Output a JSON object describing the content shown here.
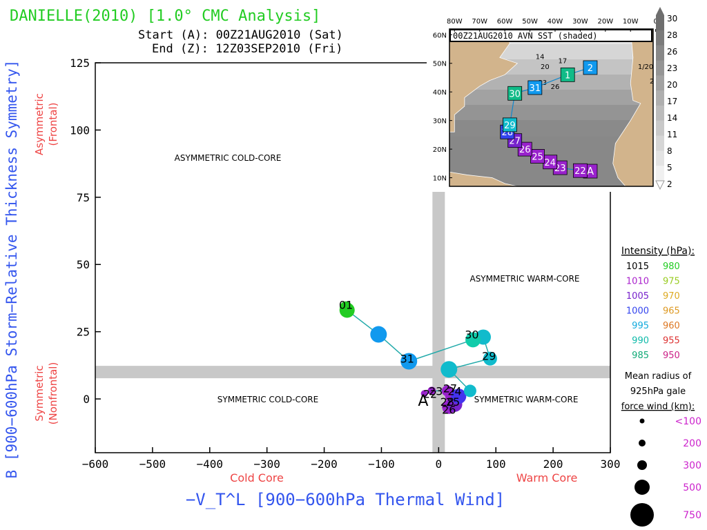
{
  "header": {
    "title": "DANIELLE(2010) [1.0° CMC Analysis]",
    "start_line": "Start (A): 00Z21AUG2010 (Sat)",
    "end_line": "End (Z): 12Z03SEP2010 (Fri)"
  },
  "colors": {
    "title": "#22cc22",
    "axis_label_blue": "#3355ee",
    "axis_sub_red": "#ee4444",
    "gray_band": "#c8c8c8",
    "track_line": "#22aaaa",
    "magenta_label": "#cc22cc"
  },
  "chart_data": {
    "type": "scatter",
    "title": "DANIELLE(2010) [1.0° CMC Analysis]",
    "xlabel": "−V_T^L [900−600hPa Thermal Wind]",
    "ylabel": "B [900−600hPa Storm−Relative Thickness Symmetry]",
    "xlim": [
      -600,
      300
    ],
    "ylim": [
      -20,
      125
    ],
    "x_ticks": [
      -600,
      -500,
      -400,
      -300,
      -200,
      -100,
      0,
      100,
      200,
      300
    ],
    "y_ticks": [
      0,
      25,
      50,
      75,
      100,
      125
    ],
    "x_sub_left": "Cold Core",
    "x_sub_right": "Warm Core",
    "y_sub_top": [
      "Asymmetric",
      "(Frontal)"
    ],
    "y_sub_bottom": [
      "Symmetric",
      "(Nonfrontal)"
    ],
    "band_x": 0,
    "band_y": 10,
    "quadrant_labels": {
      "top_left": "ASYMMETRIC COLD-CORE",
      "top_right": "ASYMMETRIC WARM-CORE",
      "bottom_left": "SYMMETRIC COLD-CORE",
      "bottom_right": "SYMMETRIC WARM-CORE"
    },
    "track": [
      {
        "x": -25,
        "y": 2,
        "color": "#9922cc",
        "r": 5
      },
      {
        "x": -12,
        "y": 3,
        "color": "#9922cc",
        "r": 6
      },
      {
        "x": 15,
        "y": 3,
        "color": "#9922cc",
        "r": 8
      },
      {
        "x": 22,
        "y": 1,
        "color": "#9922cc",
        "r": 9
      },
      {
        "x": 18,
        "y": -3,
        "color": "#9922cc",
        "r": 10
      },
      {
        "x": 28,
        "y": -2,
        "color": "#7722cc",
        "r": 11
      },
      {
        "x": 35,
        "y": 1,
        "color": "#4433ee",
        "r": 11
      },
      {
        "x": 55,
        "y": 3,
        "color": "#11bbcc",
        "r": 9
      },
      {
        "x": 18,
        "y": 11,
        "color": "#11bbcc",
        "r": 12
      },
      {
        "x": 90,
        "y": 15,
        "color": "#11bbcc",
        "r": 10
      },
      {
        "x": 78,
        "y": 23,
        "color": "#11bbcc",
        "r": 11
      },
      {
        "x": 60,
        "y": 22,
        "color": "#11ccaa",
        "r": 11
      },
      {
        "x": -52,
        "y": 14,
        "color": "#1199ee",
        "r": 12
      },
      {
        "x": -105,
        "y": 24,
        "color": "#1199ee",
        "r": 12
      },
      {
        "x": -160,
        "y": 33,
        "color": "#22cc22",
        "r": 11
      },
      {
        "x": -162,
        "y": 34,
        "color": "#22cc22",
        "r": 9
      }
    ],
    "point_labels": [
      {
        "text": "A",
        "x": -27,
        "y": -1
      },
      {
        "text": "22",
        "x": -15,
        "y": 2
      },
      {
        "text": "23",
        "x": -5,
        "y": 3
      },
      {
        "text": "24",
        "x": 28,
        "y": 3
      },
      {
        "text": "25",
        "x": 25,
        "y": -1
      },
      {
        "text": "26",
        "x": 18,
        "y": -4
      },
      {
        "text": "27",
        "x": 20,
        "y": 4
      },
      {
        "text": "28",
        "x": 15,
        "y": -1
      },
      {
        "text": "29",
        "x": 88,
        "y": 16
      },
      {
        "text": "30",
        "x": 58,
        "y": 24
      },
      {
        "text": "31",
        "x": -55,
        "y": 15
      },
      {
        "text": "01",
        "x": -162,
        "y": 35
      }
    ]
  },
  "legend": {
    "intensity_title": "Intensity (hPa):",
    "intensity": [
      {
        "v1": "1015",
        "c1": "#000000",
        "v2": "980",
        "c2": "#22cc22"
      },
      {
        "v1": "1010",
        "c1": "#aa22cc",
        "v2": "975",
        "c2": "#99cc22"
      },
      {
        "v1": "1005",
        "c1": "#7722cc",
        "v2": "970",
        "c2": "#ddaa22"
      },
      {
        "v1": "1000",
        "c1": "#3344ee",
        "v2": "965",
        "c2": "#dd9922"
      },
      {
        "v1": "995",
        "c1": "#11aadd",
        "v2": "960",
        "c2": "#dd7722"
      },
      {
        "v1": "990",
        "c1": "#11bbaa",
        "v2": "955",
        "c2": "#dd3333"
      },
      {
        "v1": "985",
        "c1": "#11aa77",
        "v2": "950",
        "c2": "#cc2288"
      }
    ],
    "radius_title": [
      "Mean radius of",
      "925hPa gale",
      "force wind (km):"
    ],
    "radius": [
      {
        "label": "<100",
        "r": 3.5
      },
      {
        "label": "200",
        "r": 5
      },
      {
        "label": "300",
        "r": 7
      },
      {
        "label": "500",
        "r": 11
      },
      {
        "label": "750",
        "r": 17
      }
    ]
  },
  "inset": {
    "title": "00Z21AUG2010 AVN SST (shaded)",
    "lon_labels": [
      "80W",
      "70W",
      "60W",
      "50W",
      "40W",
      "30W",
      "20W",
      "10W",
      "0"
    ],
    "lat_labels": [
      "60N",
      "50N",
      "40N",
      "30N",
      "20N",
      "10N"
    ],
    "colorbar_labels": [
      "30",
      "28",
      "26",
      "23",
      "20",
      "17",
      "14",
      "11",
      "8",
      "5",
      "2"
    ],
    "contour_labels": [
      "14",
      "17",
      "20",
      "23",
      "26",
      "2",
      "1/20"
    ],
    "track": [
      {
        "label": "A",
        "lon": -26,
        "lat": 12.3,
        "color": "#9922cc"
      },
      {
        "label": "22",
        "lon": -30,
        "lat": 12.5,
        "color": "#9922cc"
      },
      {
        "label": "23",
        "lon": -38,
        "lat": 13.5,
        "color": "#9922cc"
      },
      {
        "label": "24",
        "lon": -42,
        "lat": 15.5,
        "color": "#9922cc"
      },
      {
        "label": "25",
        "lon": -47,
        "lat": 17.5,
        "color": "#9922cc"
      },
      {
        "label": "26",
        "lon": -52,
        "lat": 20.0,
        "color": "#9922cc"
      },
      {
        "label": "27",
        "lon": -56,
        "lat": 23.0,
        "color": "#7722cc"
      },
      {
        "label": "28",
        "lon": -59,
        "lat": 26.0,
        "color": "#3344ee"
      },
      {
        "label": "29",
        "lon": -58,
        "lat": 28.5,
        "color": "#11bbcc"
      },
      {
        "label": "30",
        "lon": -56,
        "lat": 39.5,
        "color": "#11bb88"
      },
      {
        "label": "31",
        "lon": -48,
        "lat": 41.5,
        "color": "#1199ee"
      },
      {
        "label": "1",
        "lon": -35,
        "lat": 46.0,
        "color": "#11bb88"
      },
      {
        "label": "2",
        "lon": -26,
        "lat": 48.5,
        "color": "#1199ee"
      }
    ]
  }
}
